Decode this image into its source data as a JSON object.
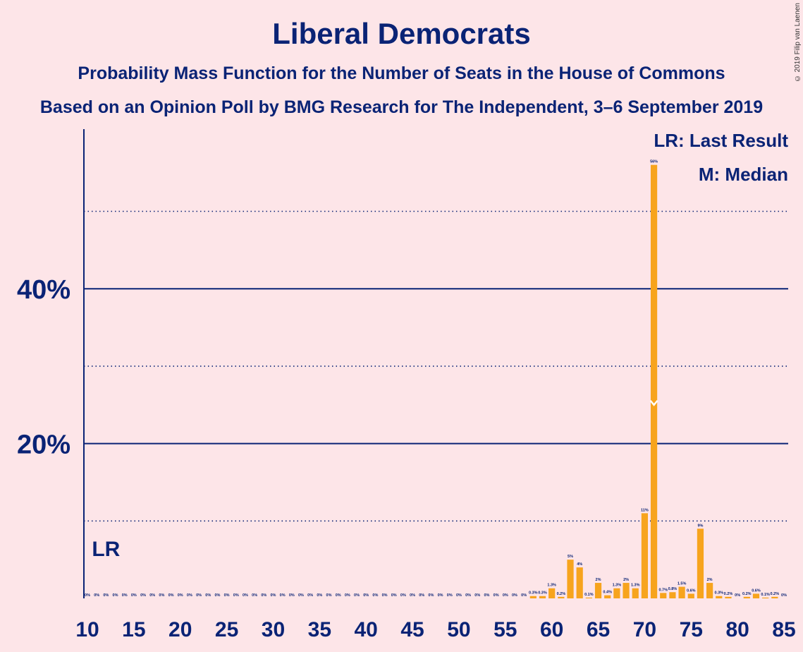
{
  "title": "Liberal Democrats",
  "subtitle": "Probability Mass Function for the Number of Seats in the House of Commons",
  "subtitle2": "Based on an Opinion Poll by BMG Research for The Independent, 3–6 September 2019",
  "copyright": "© 2019 Filip van Laenen",
  "legend": {
    "lr": "LR: Last Result",
    "median": "M: Median"
  },
  "colors": {
    "bar": "#f7a41d",
    "axis": "#0a2375",
    "background": "#fde5e8"
  },
  "chart_data": {
    "type": "bar",
    "x_range": [
      10,
      85
    ],
    "x_ticks": [
      10,
      15,
      20,
      25,
      30,
      35,
      40,
      45,
      50,
      55,
      60,
      65,
      70,
      75,
      80,
      85
    ],
    "y_ticks_labeled": [
      {
        "value": 20,
        "label": "20%"
      },
      {
        "value": 40,
        "label": "40%"
      }
    ],
    "y_gridlines_dotted": [
      10,
      30,
      50
    ],
    "ylim": [
      0,
      60
    ],
    "last_result": {
      "seat": 12,
      "label": "LR"
    },
    "median": {
      "seat": 71,
      "marker": "M"
    },
    "bars": [
      {
        "x": 10,
        "value": 0,
        "label": "0%"
      },
      {
        "x": 11,
        "value": 0,
        "label": "0%"
      },
      {
        "x": 12,
        "value": 0,
        "label": "0%"
      },
      {
        "x": 13,
        "value": 0,
        "label": "0%"
      },
      {
        "x": 14,
        "value": 0,
        "label": "0%"
      },
      {
        "x": 15,
        "value": 0,
        "label": "0%"
      },
      {
        "x": 16,
        "value": 0,
        "label": "0%"
      },
      {
        "x": 17,
        "value": 0,
        "label": "0%"
      },
      {
        "x": 18,
        "value": 0,
        "label": "0%"
      },
      {
        "x": 19,
        "value": 0,
        "label": "0%"
      },
      {
        "x": 20,
        "value": 0,
        "label": "0%"
      },
      {
        "x": 21,
        "value": 0,
        "label": "0%"
      },
      {
        "x": 22,
        "value": 0,
        "label": "0%"
      },
      {
        "x": 23,
        "value": 0,
        "label": "0%"
      },
      {
        "x": 24,
        "value": 0,
        "label": "0%"
      },
      {
        "x": 25,
        "value": 0,
        "label": "0%"
      },
      {
        "x": 26,
        "value": 0,
        "label": "0%"
      },
      {
        "x": 27,
        "value": 0,
        "label": "0%"
      },
      {
        "x": 28,
        "value": 0,
        "label": "0%"
      },
      {
        "x": 29,
        "value": 0,
        "label": "0%"
      },
      {
        "x": 30,
        "value": 0,
        "label": "0%"
      },
      {
        "x": 31,
        "value": 0,
        "label": "0%"
      },
      {
        "x": 32,
        "value": 0,
        "label": "0%"
      },
      {
        "x": 33,
        "value": 0,
        "label": "0%"
      },
      {
        "x": 34,
        "value": 0,
        "label": "0%"
      },
      {
        "x": 35,
        "value": 0,
        "label": "0%"
      },
      {
        "x": 36,
        "value": 0,
        "label": "0%"
      },
      {
        "x": 37,
        "value": 0,
        "label": "0%"
      },
      {
        "x": 38,
        "value": 0,
        "label": "0%"
      },
      {
        "x": 39,
        "value": 0,
        "label": "0%"
      },
      {
        "x": 40,
        "value": 0,
        "label": "0%"
      },
      {
        "x": 41,
        "value": 0,
        "label": "0%"
      },
      {
        "x": 42,
        "value": 0,
        "label": "0%"
      },
      {
        "x": 43,
        "value": 0,
        "label": "0%"
      },
      {
        "x": 44,
        "value": 0,
        "label": "0%"
      },
      {
        "x": 45,
        "value": 0,
        "label": "0%"
      },
      {
        "x": 46,
        "value": 0,
        "label": "0%"
      },
      {
        "x": 47,
        "value": 0,
        "label": "0%"
      },
      {
        "x": 48,
        "value": 0,
        "label": "0%"
      },
      {
        "x": 49,
        "value": 0,
        "label": "0%"
      },
      {
        "x": 50,
        "value": 0,
        "label": "0%"
      },
      {
        "x": 51,
        "value": 0,
        "label": "0%"
      },
      {
        "x": 52,
        "value": 0,
        "label": "0%"
      },
      {
        "x": 53,
        "value": 0,
        "label": "0%"
      },
      {
        "x": 54,
        "value": 0,
        "label": "0%"
      },
      {
        "x": 55,
        "value": 0,
        "label": "0%"
      },
      {
        "x": 56,
        "value": 0,
        "label": "0%"
      },
      {
        "x": 57,
        "value": 0,
        "label": "0%"
      },
      {
        "x": 58,
        "value": 0.3,
        "label": "0.3%"
      },
      {
        "x": 59,
        "value": 0.3,
        "label": "0.3%"
      },
      {
        "x": 60,
        "value": 1.3,
        "label": "1.3%"
      },
      {
        "x": 61,
        "value": 0.2,
        "label": "0.2%"
      },
      {
        "x": 62,
        "value": 5,
        "label": "5%"
      },
      {
        "x": 63,
        "value": 4,
        "label": "4%"
      },
      {
        "x": 64,
        "value": 0.1,
        "label": "0.1%"
      },
      {
        "x": 65,
        "value": 2,
        "label": "2%"
      },
      {
        "x": 66,
        "value": 0.4,
        "label": "0.4%"
      },
      {
        "x": 67,
        "value": 1.3,
        "label": "1.3%"
      },
      {
        "x": 68,
        "value": 2,
        "label": "2%"
      },
      {
        "x": 69,
        "value": 1.3,
        "label": "1.3%"
      },
      {
        "x": 70,
        "value": 11,
        "label": "11%"
      },
      {
        "x": 71,
        "value": 56,
        "label": "56%"
      },
      {
        "x": 72,
        "value": 0.7,
        "label": "0.7%"
      },
      {
        "x": 73,
        "value": 0.8,
        "label": "0.8%"
      },
      {
        "x": 74,
        "value": 1.5,
        "label": "1.5%"
      },
      {
        "x": 75,
        "value": 0.6,
        "label": "0.6%"
      },
      {
        "x": 76,
        "value": 9,
        "label": "9%"
      },
      {
        "x": 77,
        "value": 2,
        "label": "2%"
      },
      {
        "x": 78,
        "value": 0.3,
        "label": "0.3%"
      },
      {
        "x": 79,
        "value": 0.2,
        "label": "0.2%"
      },
      {
        "x": 80,
        "value": 0,
        "label": "0%"
      },
      {
        "x": 81,
        "value": 0.2,
        "label": "0.2%"
      },
      {
        "x": 82,
        "value": 0.6,
        "label": "0.6%"
      },
      {
        "x": 83,
        "value": 0.1,
        "label": "0.1%"
      },
      {
        "x": 84,
        "value": 0.2,
        "label": "0.2%"
      },
      {
        "x": 85,
        "value": 0,
        "label": "0%"
      }
    ]
  }
}
